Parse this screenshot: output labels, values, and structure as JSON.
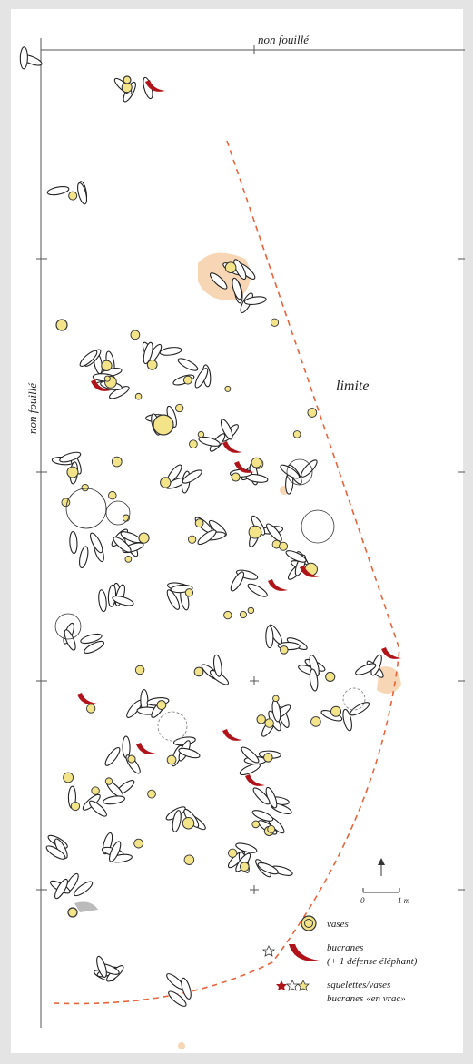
{
  "header": {
    "top_label": "non fouillé",
    "left_label": "non fouillé"
  },
  "map": {
    "limit_label": "limite"
  },
  "scale": {
    "start": "0",
    "end": "1 m"
  },
  "legend": {
    "items": [
      {
        "label": "vases"
      },
      {
        "label": "bucranes",
        "note": "(+ 1 défense éléphant)"
      },
      {
        "label": "squelettes/vases",
        "note": "bucranes «en vrac»"
      }
    ]
  }
}
